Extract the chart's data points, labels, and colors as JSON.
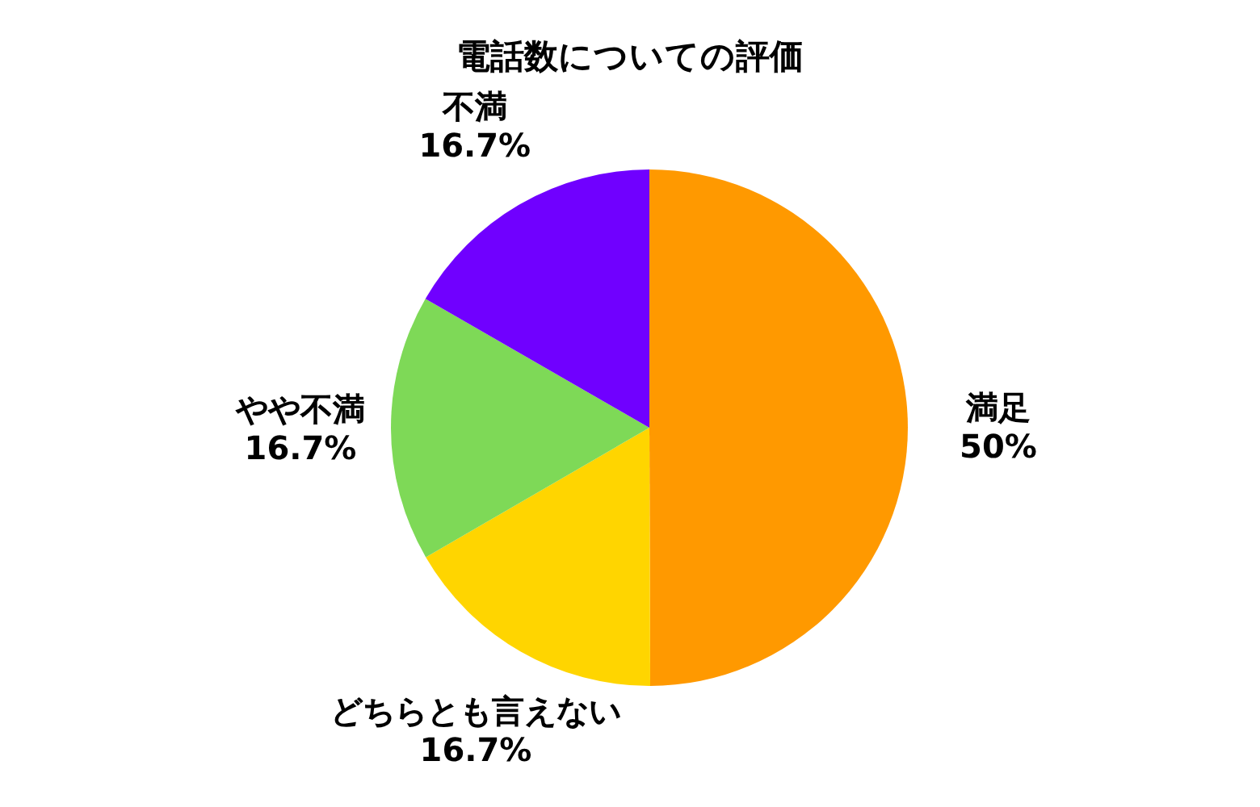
{
  "chart_data": {
    "type": "pie",
    "title": "電話数についての評価",
    "categories": [
      "満足",
      "どちらとも言えない",
      "やや不満",
      "不満"
    ],
    "values": [
      50,
      16.7,
      16.7,
      16.7
    ],
    "colors": [
      "#ff9900",
      "#ffd500",
      "#7ed957",
      "#7000ff"
    ],
    "value_labels": [
      "50%",
      "16.7%",
      "16.7%",
      "16.7%"
    ]
  }
}
